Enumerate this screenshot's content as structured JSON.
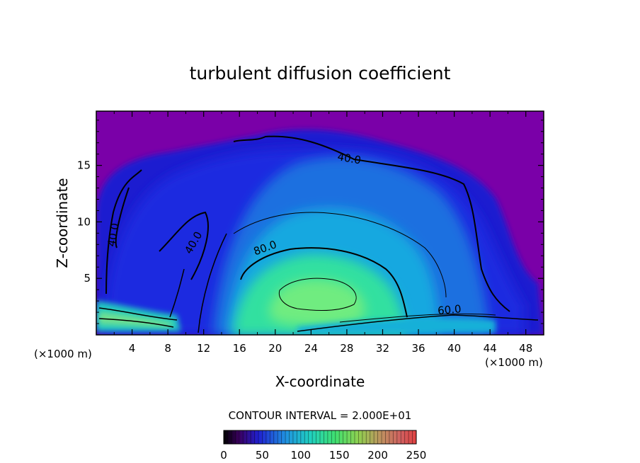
{
  "chart_data": {
    "type": "heatmap",
    "title": "turbulent diffusion coefficient",
    "xlabel": "X-coordinate",
    "ylabel": "Z-coordinate",
    "x_units": "(×1000 m)",
    "y_units": "(×1000 m)",
    "xlim": [
      0,
      50
    ],
    "ylim": [
      0,
      19.8
    ],
    "x_ticks": [
      4,
      8,
      12,
      16,
      20,
      24,
      28,
      32,
      36,
      40,
      44,
      48
    ],
    "y_ticks": [
      5,
      10,
      15
    ],
    "contour_interval_text": "CONTOUR INTERVAL = 2.000E+01",
    "contour_labels": [
      {
        "text": "40.0",
        "x": 28.2,
        "y": 15.3
      },
      {
        "text": "40.0",
        "x": 2.3,
        "y": 8.8
      },
      {
        "text": "40.0",
        "x": 11.2,
        "y": 8.0
      },
      {
        "text": "80.0",
        "x": 19.0,
        "y": 7.4
      },
      {
        "text": "60.0",
        "x": 39.5,
        "y": 1.9
      }
    ],
    "colorbar": {
      "range": [
        0,
        250
      ],
      "ticks": [
        0,
        50,
        100,
        150,
        200,
        250
      ]
    },
    "colors": {
      "background_field": "#7a00a8",
      "low": "#1a14c8",
      "mid": "#1aa8e0",
      "high": "#38e890",
      "peak": "#80f070"
    }
  }
}
